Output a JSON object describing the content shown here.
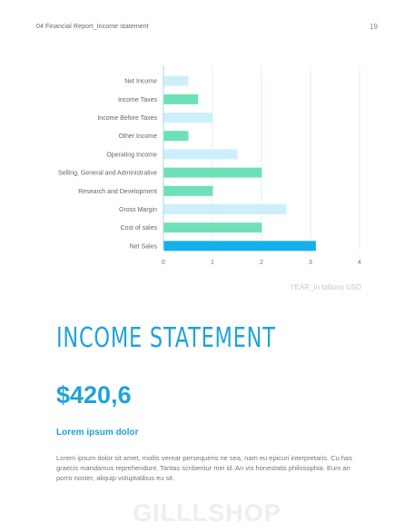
{
  "header": {
    "title": "04 Financial  Report_Income statement",
    "page_number": "19"
  },
  "chart_data": {
    "type": "bar",
    "orientation": "horizontal",
    "categories": [
      "Net Income",
      "Income Taxes",
      "Income Before Taxes",
      "Other Income",
      "Operating Income",
      "Selling, General and Administrative",
      "Research and Development",
      "Gross Margin",
      "Cost of sales",
      "Net Sales"
    ],
    "values": [
      0.5,
      0.7,
      1.0,
      0.5,
      1.5,
      2.0,
      1.0,
      2.5,
      2.0,
      3.1
    ],
    "bar_colors": [
      "#cdeffa",
      "#6ee0b6",
      "#cdeffa",
      "#6ee0b6",
      "#cdeffa",
      "#6ee0b6",
      "#6ee0b6",
      "#cdeffa",
      "#6ee0b6",
      "#16b0ea"
    ],
    "xlim": [
      0,
      4
    ],
    "xticks": [
      "0",
      "1",
      "2",
      "3",
      "4"
    ],
    "xlabel": "YEAR_In billions USD",
    "grid": true
  },
  "section": {
    "title": "Income statement",
    "amount": "$420,6",
    "subheading": "Lorem ipsum dolor",
    "body": "Lorem ipsum dolor sit amet, mollis verear persequeris ne sea, nam eu epicuri interpretaris. Cu has graecis mandamus reprehendunt. Tantas scribentur mei id. An vis honestatis philosophia. Eum an porro noster, aliquip voluptatibus eu sit."
  },
  "watermark": "GILLLSHOP",
  "colors": {
    "accent": "#1fa3d8",
    "bar_light": "#cdeffa",
    "bar_green": "#6ee0b6",
    "bar_blue": "#16b0ea"
  }
}
